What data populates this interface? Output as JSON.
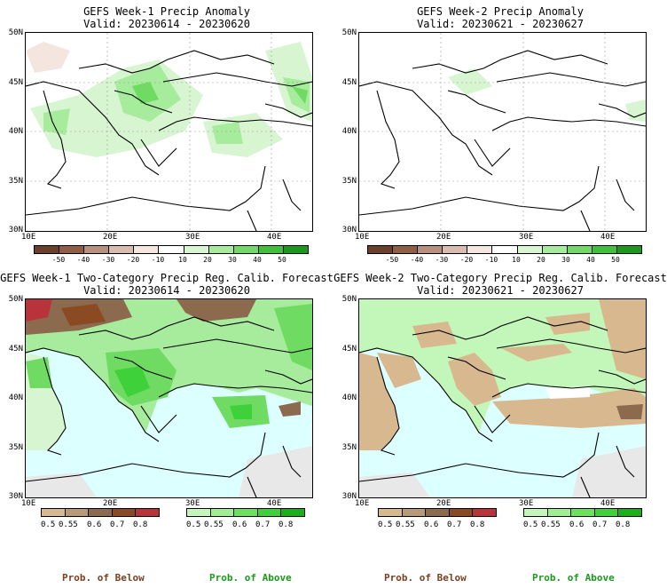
{
  "panels": {
    "tl": {
      "title": "GEFS Week-1 Precip Anomaly",
      "valid": "Valid: 20230614 - 20230620"
    },
    "tr": {
      "title": "GEFS Week-2 Precip Anomaly",
      "valid": "Valid: 20230621 - 20230627"
    },
    "bl": {
      "title": "GEFS Week-1 Two-Category Precip Reg. Calib. Forecast",
      "valid": "Valid: 20230614 - 20230620"
    },
    "br": {
      "title": "GEFS Week-2 Two-Category Precip Reg. Calib. Forecast",
      "valid": "Valid: 20230621 - 20230627"
    }
  },
  "axes": {
    "lat_labels": [
      "50N",
      "45N",
      "40N",
      "35N",
      "30N"
    ],
    "lon_labels": [
      "10E",
      "20E",
      "30E",
      "40E"
    ]
  },
  "anomaly_colorbar": {
    "ticks": [
      "-50",
      "-40",
      "-30",
      "-20",
      "-10",
      "10",
      "20",
      "30",
      "40",
      "50"
    ],
    "colors": [
      "#6b3f2a",
      "#8f5f45",
      "#b8907c",
      "#d9bcae",
      "#f4e6df",
      "#ffffff",
      "#d6f5d0",
      "#a7eb9c",
      "#6fdb63",
      "#3fc23a",
      "#1a9a1a"
    ]
  },
  "prob_colorbar": {
    "below": {
      "ticks": [
        "0.5",
        "0.55",
        "0.6",
        "0.7",
        "0.8"
      ],
      "colors": [
        "#d8b98f",
        "#b99a78",
        "#8c6a4e",
        "#8a4a22",
        "#b8333a"
      ]
    },
    "above": {
      "ticks": [
        "0.5",
        "0.55",
        "0.6",
        "0.7",
        "0.8"
      ],
      "colors": [
        "#c3f7b9",
        "#9fee8f",
        "#6be25c",
        "#3fd13a",
        "#1ab01a"
      ]
    }
  },
  "footer": {
    "below_left": "Prob. of Below",
    "above_left": "Prob. of Above",
    "below_right": "Prob. of Below",
    "above_right": "Prob. of Above"
  },
  "colors": {
    "sea": "#dcffff",
    "nodata": "#e8e8e8"
  }
}
